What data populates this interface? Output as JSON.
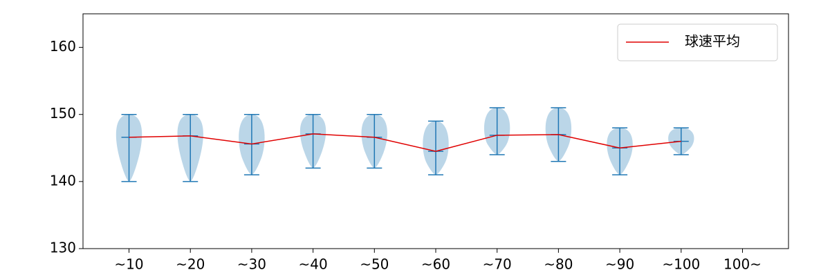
{
  "chart_data": {
    "type": "violin",
    "categories": [
      "~10",
      "~20",
      "~30",
      "~40",
      "~50",
      "~60",
      "~70",
      "~80",
      "~90",
      "~100",
      "100~"
    ],
    "min": [
      140,
      140,
      141,
      142,
      142,
      141,
      144,
      143,
      141,
      144,
      null
    ],
    "max": [
      150,
      150,
      150,
      150,
      150,
      149,
      151,
      151,
      148,
      148,
      null
    ],
    "series": [
      {
        "name": "球速平均",
        "color": "#e00000",
        "values": [
          146.6,
          146.8,
          145.6,
          147.1,
          146.6,
          144.5,
          146.9,
          147.0,
          145.0,
          146.0,
          null
        ]
      }
    ],
    "violin_color": "#1f77b4",
    "ylim": [
      130,
      165
    ],
    "yticks": [
      130,
      140,
      150,
      160
    ],
    "legend": "upper right"
  }
}
